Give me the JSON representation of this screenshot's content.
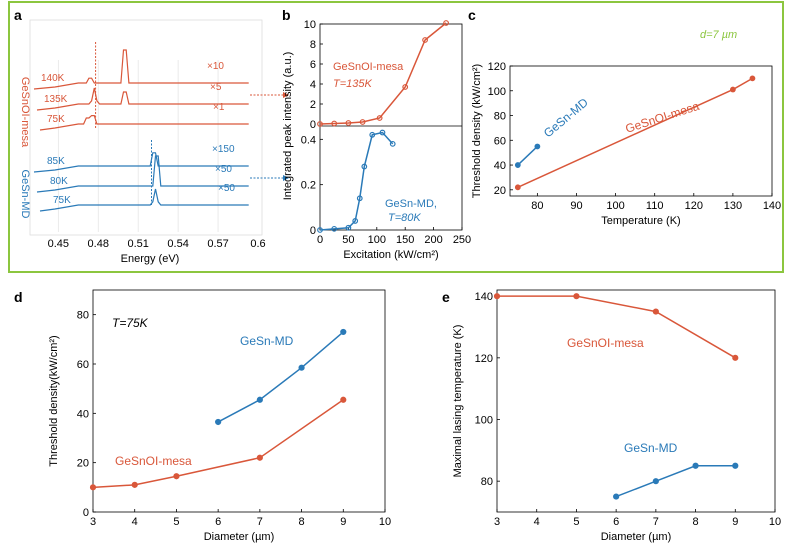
{
  "colors": {
    "orange": "#d9573a",
    "blue": "#2a7ab8",
    "frame": "#8cc63f",
    "axis": "#000000",
    "grid": "#cfcfcf"
  },
  "chart_data": [
    {
      "panel": "a",
      "type": "line",
      "title": "",
      "xlabel": "Energy (eV)",
      "xlim": [
        0.44,
        0.6
      ],
      "xticks": [
        "0.45",
        "0.48",
        "0.51",
        "0.54",
        "0.57",
        "0.6"
      ],
      "groups": [
        {
          "name": "GeSnOI-mesa",
          "color": "orange",
          "traces": [
            {
              "temp": "140K",
              "scale": "×10"
            },
            {
              "temp": "135K",
              "scale": "×5"
            },
            {
              "temp": "75K",
              "scale": "×1"
            }
          ]
        },
        {
          "name": "GeSn-MD",
          "color": "blue",
          "traces": [
            {
              "temp": "85K",
              "scale": "×150"
            },
            {
              "temp": "80K",
              "scale": "×50"
            },
            {
              "temp": "75K",
              "scale": "×50"
            }
          ]
        }
      ]
    },
    {
      "panel": "b",
      "type": "line",
      "xlabel": "Excitation (kW/cm²)",
      "ylabel": "Integrated peak intensity (a.u.)",
      "xlim": [
        0,
        250
      ],
      "xticks": [
        "0",
        "50",
        "100",
        "150",
        "200",
        "250"
      ],
      "top": {
        "label": "GeSnOI-mesa",
        "sublabel": "T=135K",
        "ylim": [
          0,
          10
        ],
        "yticks": [
          "0",
          "2",
          "4",
          "6",
          "8",
          "10"
        ],
        "x": [
          0,
          25,
          50,
          75,
          105,
          150,
          185,
          222
        ],
        "y": [
          0,
          0.05,
          0.1,
          0.2,
          0.6,
          3.7,
          8.4,
          10.1
        ]
      },
      "bottom": {
        "label": "GeSn-MD,",
        "sublabel": "T=80K",
        "ylim": [
          0,
          0.45
        ],
        "yticks": [
          "0",
          "0.2",
          "0.4"
        ],
        "x": [
          0,
          25,
          50,
          62,
          70,
          78,
          92,
          110,
          128
        ],
        "y": [
          0,
          0.005,
          0.01,
          0.04,
          0.14,
          0.28,
          0.42,
          0.43,
          0.38
        ]
      }
    },
    {
      "panel": "c",
      "type": "line",
      "annotation": "d=7 µm",
      "xlabel": "Temperature (K)",
      "ylabel": "Threshold density (kW/cm²)",
      "xlim": [
        73,
        140
      ],
      "ylim": [
        15,
        120
      ],
      "xticks": [
        "80",
        "90",
        "100",
        "110",
        "120",
        "130",
        "140"
      ],
      "yticks": [
        "20",
        "40",
        "60",
        "80",
        "100",
        "120"
      ],
      "series": [
        {
          "name": "GeSn-MD",
          "color": "blue",
          "x": [
            75,
            80
          ],
          "y": [
            40,
            55
          ]
        },
        {
          "name": "GeSnOI-mesa",
          "color": "orange",
          "x": [
            75,
            130,
            135
          ],
          "y": [
            22,
            101,
            110
          ]
        }
      ]
    },
    {
      "panel": "d",
      "type": "line",
      "annotation": "T=75K",
      "xlabel": "Diameter (µm)",
      "ylabel": "Threshold density(kW/cm²)",
      "xlim": [
        3,
        10
      ],
      "ylim": [
        0,
        90
      ],
      "xticks": [
        "3",
        "4",
        "5",
        "6",
        "7",
        "8",
        "9",
        "10"
      ],
      "yticks": [
        "0",
        "20",
        "40",
        "60",
        "80"
      ],
      "series": [
        {
          "name": "GeSn-MD",
          "color": "blue",
          "x": [
            6,
            7,
            8,
            9
          ],
          "y": [
            36.5,
            45.5,
            58.5,
            73
          ]
        },
        {
          "name": "GeSnOI-mesa",
          "color": "orange",
          "x": [
            3,
            4,
            5,
            7,
            9
          ],
          "y": [
            10,
            11,
            14.5,
            22,
            45.5
          ]
        }
      ]
    },
    {
      "panel": "e",
      "type": "line",
      "xlabel": "Diameter (µm)",
      "ylabel": "Maximal lasing temperature (K)",
      "xlim": [
        3,
        10
      ],
      "ylim": [
        70,
        142
      ],
      "xticks": [
        "3",
        "4",
        "5",
        "6",
        "7",
        "8",
        "9",
        "10"
      ],
      "yticks": [
        "80",
        "100",
        "120",
        "140"
      ],
      "series": [
        {
          "name": "GeSnOI-mesa",
          "color": "orange",
          "x": [
            3,
            5,
            7,
            9
          ],
          "y": [
            140,
            140,
            135,
            120
          ]
        },
        {
          "name": "GeSn-MD",
          "color": "blue",
          "x": [
            6,
            7,
            8,
            9
          ],
          "y": [
            75,
            80,
            85,
            85
          ]
        }
      ]
    }
  ]
}
